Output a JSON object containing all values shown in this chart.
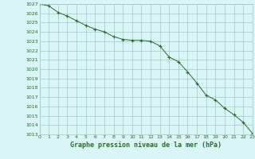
{
  "x": [
    0,
    1,
    2,
    3,
    4,
    5,
    6,
    7,
    8,
    9,
    10,
    11,
    12,
    13,
    14,
    15,
    16,
    17,
    18,
    19,
    20,
    21,
    22,
    23
  ],
  "y": [
    1027.0,
    1026.8,
    1026.1,
    1025.7,
    1025.2,
    1024.7,
    1024.3,
    1024.0,
    1023.5,
    1023.2,
    1023.1,
    1023.1,
    1023.0,
    1022.5,
    1021.3,
    1020.8,
    1019.7,
    1018.5,
    1017.2,
    1016.7,
    1015.8,
    1015.1,
    1014.3,
    1013.1
  ],
  "ylim": [
    1013,
    1027
  ],
  "xlim": [
    0,
    23
  ],
  "yticks": [
    1013,
    1014,
    1015,
    1016,
    1017,
    1018,
    1019,
    1020,
    1021,
    1022,
    1023,
    1024,
    1025,
    1026,
    1027
  ],
  "xticks": [
    0,
    1,
    2,
    3,
    4,
    5,
    6,
    7,
    8,
    9,
    10,
    11,
    12,
    13,
    14,
    15,
    16,
    17,
    18,
    19,
    20,
    21,
    22,
    23
  ],
  "line_color": "#2d6a2d",
  "marker_color": "#2d6a2d",
  "bg_color": "#d9f5f5",
  "grid_color": "#a0c8c8",
  "xlabel": "Graphe pression niveau de la mer (hPa)",
  "tick_fontsize": 4.5,
  "label_fontsize": 6.0,
  "title": ""
}
